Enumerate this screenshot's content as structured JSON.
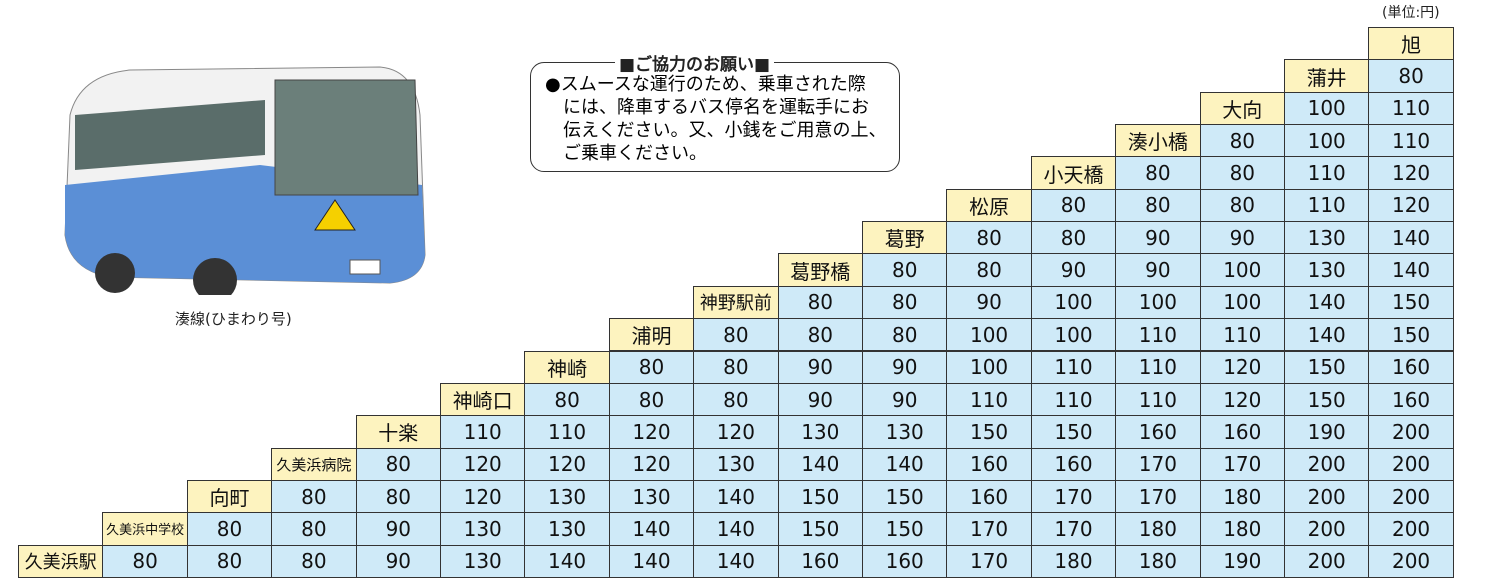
{
  "unit": "(単位:円)",
  "notice": {
    "title": "■ご協力のお願い■",
    "lines": [
      "●スムースな運行のため、乗車された際",
      "には、降車するバス停名を運転手にお",
      "伝えください。又、小銭をご用意の上、",
      "ご乗車ください。"
    ]
  },
  "photo_caption": "湊線(ひまわり号)",
  "table": {
    "rows": [
      {
        "stop": "旭",
        "fares": []
      },
      {
        "stop": "蒲井",
        "fares": [
          80
        ]
      },
      {
        "stop": "大向",
        "fares": [
          100,
          110
        ]
      },
      {
        "stop": "湊小橋",
        "fares": [
          80,
          100,
          110
        ]
      },
      {
        "stop": "小天橋",
        "fares": [
          80,
          80,
          110,
          120
        ]
      },
      {
        "stop": "松原",
        "fares": [
          80,
          80,
          80,
          110,
          120
        ]
      },
      {
        "stop": "葛野",
        "fares": [
          80,
          80,
          90,
          90,
          130,
          140
        ]
      },
      {
        "stop": "葛野橋",
        "fares": [
          80,
          80,
          90,
          90,
          100,
          130,
          140
        ]
      },
      {
        "stop": "神野駅前",
        "fares": [
          80,
          80,
          90,
          100,
          100,
          100,
          140,
          150
        ]
      },
      {
        "stop": "浦明",
        "fares": [
          80,
          80,
          80,
          100,
          100,
          110,
          110,
          140,
          150
        ]
      },
      {
        "stop": "神崎",
        "fares": [
          80,
          80,
          90,
          90,
          100,
          110,
          110,
          120,
          150,
          160
        ]
      },
      {
        "stop": "神崎口",
        "fares": [
          80,
          80,
          80,
          90,
          90,
          110,
          110,
          110,
          120,
          150,
          160
        ]
      },
      {
        "stop": "十楽",
        "fares": [
          110,
          110,
          120,
          120,
          130,
          130,
          150,
          150,
          160,
          160,
          190,
          200
        ]
      },
      {
        "stop": "久美浜病院",
        "fares": [
          80,
          120,
          120,
          120,
          130,
          140,
          140,
          160,
          160,
          170,
          170,
          200,
          200
        ]
      },
      {
        "stop": "向町",
        "fares": [
          80,
          80,
          120,
          130,
          130,
          140,
          150,
          150,
          160,
          170,
          170,
          180,
          200,
          200
        ]
      },
      {
        "stop": "久美浜中学校",
        "fares": [
          80,
          80,
          90,
          130,
          130,
          140,
          140,
          150,
          150,
          170,
          170,
          180,
          180,
          200,
          200
        ]
      },
      {
        "stop": "久美浜駅",
        "fares": [
          80,
          80,
          80,
          90,
          130,
          140,
          140,
          140,
          160,
          160,
          170,
          180,
          180,
          190,
          200,
          200
        ]
      }
    ]
  }
}
